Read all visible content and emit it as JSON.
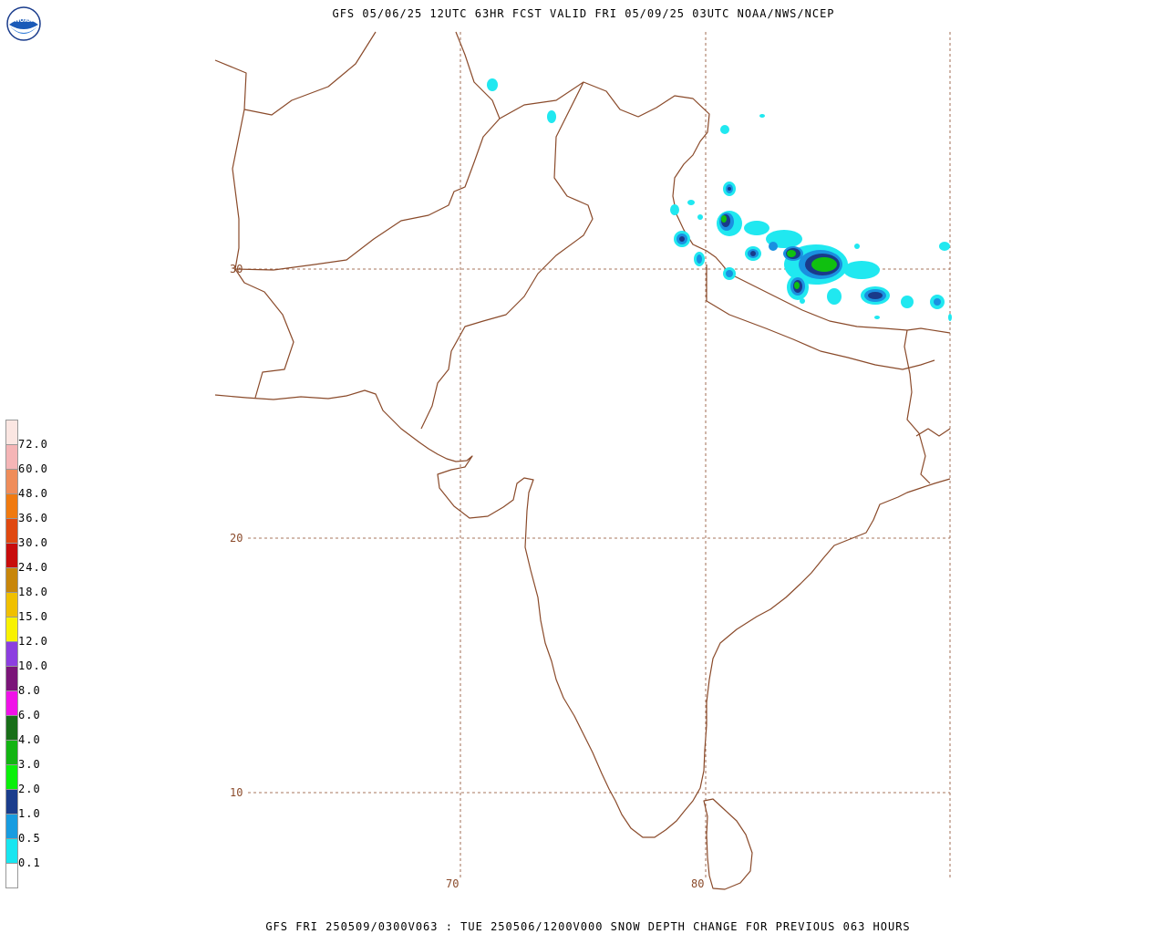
{
  "header": {
    "title": "GFS 05/06/25 12UTC 63HR FCST VALID FRI 05/09/25 03UTC NOAA/NWS/NCEP"
  },
  "footer": {
    "caption": "GFS FRI 250509/0300V063 : TUE 250506/1200V000 SNOW DEPTH CHANGE FOR PREVIOUS 063 HOURS"
  },
  "logo": {
    "text": "NOAA",
    "icon": "noaa-logo-icon"
  },
  "grid": {
    "lat_labels": [
      "30",
      "20",
      "10"
    ],
    "lon_labels": [
      "70",
      "80"
    ]
  },
  "legend": {
    "labels": [
      "72.0",
      "60.0",
      "48.0",
      "36.0",
      "30.0",
      "24.0",
      "18.0",
      "15.0",
      "12.0",
      "10.0",
      "8.0",
      "6.0",
      "4.0",
      "3.0",
      "2.0",
      "1.0",
      "0.5",
      "0.1"
    ],
    "colors": [
      "#fbe6e2",
      "#f5b5b6",
      "#ef8d5a",
      "#f07a10",
      "#e04810",
      "#c80c0c",
      "#c8860a",
      "#f0c000",
      "#f8f200",
      "#8c3ee0",
      "#7a1478",
      "#f012e8",
      "#186e18",
      "#12b412",
      "#0af00a",
      "#1a3c8c",
      "#189ce0",
      "#18e6f0",
      "#ffffff"
    ]
  },
  "colors": {
    "coast": "#8a4a2a",
    "grid": "#8a4a2a",
    "snow_light": "#20e8f0",
    "snow_mid": "#1a90e0",
    "snow_dark": "#1a3a8a",
    "snow_green": "#10c010"
  }
}
